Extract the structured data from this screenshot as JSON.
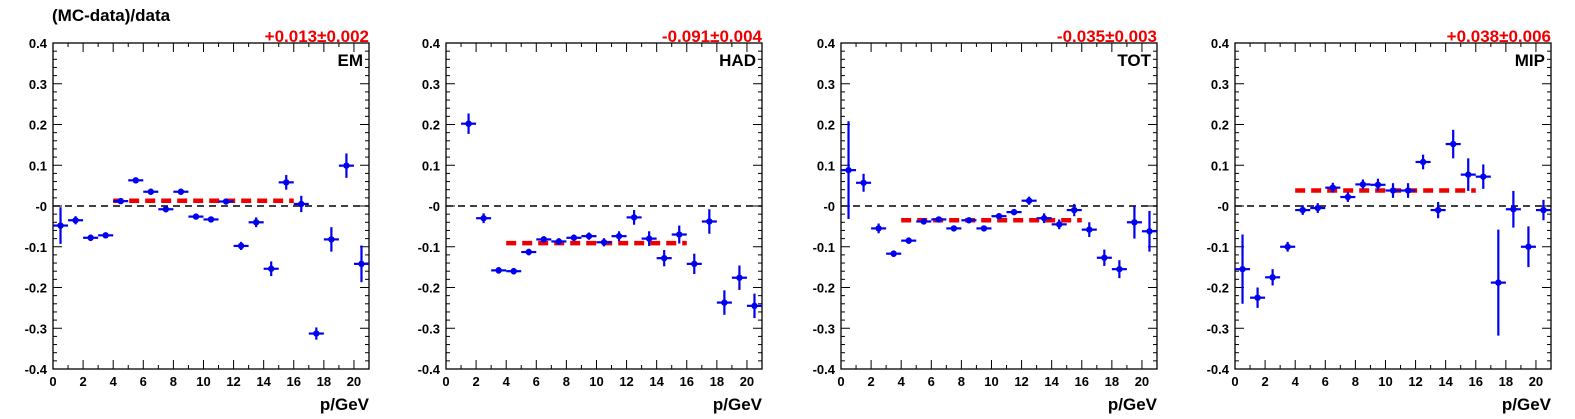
{
  "figure": {
    "ylabel": "(MC-data)/data"
  },
  "chart_data": [
    {
      "type": "scatter",
      "label": "EM",
      "fit_text": "+0.013±0.002",
      "fit_value": 0.013,
      "fit_range": [
        4,
        16
      ],
      "xlabel": "p/GeV",
      "ylabel": "(MC-data)/data",
      "xlim": [
        0,
        21
      ],
      "ylim": [
        -0.4,
        0.4
      ],
      "xticks": [
        0,
        2,
        4,
        6,
        8,
        10,
        12,
        14,
        16,
        18,
        20
      ],
      "yticks": [
        -0.4,
        -0.3,
        -0.2,
        -0.1,
        0,
        0.1,
        0.2,
        0.3,
        0.4
      ],
      "ytick_labels": [
        "-0.4",
        "-0.3",
        "-0.2",
        "-0.1",
        "-0",
        "0.1",
        "0.2",
        "0.3",
        "0.4"
      ],
      "reference_line": 0,
      "x": [
        0.5,
        1.5,
        2.5,
        3.5,
        4.5,
        5.5,
        6.5,
        7.5,
        8.5,
        9.5,
        10.5,
        11.5,
        12.5,
        13.5,
        14.5,
        15.5,
        16.5,
        17.5,
        18.5,
        19.5,
        20.5
      ],
      "y": [
        -0.048,
        -0.035,
        -0.078,
        -0.072,
        0.012,
        0.063,
        0.035,
        -0.008,
        0.035,
        -0.026,
        -0.033,
        0.011,
        -0.098,
        -0.04,
        -0.154,
        0.058,
        0.005,
        -0.313,
        -0.082,
        0.099,
        -0.142
      ],
      "yerr": [
        0.045,
        0.01,
        0.008,
        0.007,
        0.006,
        0.007,
        0.007,
        0.006,
        0.007,
        0.007,
        0.007,
        0.007,
        0.01,
        0.012,
        0.018,
        0.018,
        0.02,
        0.015,
        0.03,
        0.03,
        0.045
      ]
    },
    {
      "type": "scatter",
      "label": "HAD",
      "fit_text": "-0.091±0.004",
      "fit_value": -0.091,
      "fit_range": [
        4,
        16
      ],
      "xlabel": "p/GeV",
      "xlim": [
        0,
        21
      ],
      "ylim": [
        -0.4,
        0.4
      ],
      "xticks": [
        0,
        2,
        4,
        6,
        8,
        10,
        12,
        14,
        16,
        18,
        20
      ],
      "yticks": [
        -0.4,
        -0.3,
        -0.2,
        -0.1,
        0,
        0.1,
        0.2,
        0.3,
        0.4
      ],
      "ytick_labels": [
        "-0.4",
        "-0.3",
        "-0.2",
        "-0.1",
        "-0",
        "0.1",
        "0.2",
        "0.3",
        "0.4"
      ],
      "reference_line": 0,
      "x": [
        1.5,
        2.5,
        3.5,
        4.5,
        5.5,
        6.5,
        7.5,
        8.5,
        9.5,
        10.5,
        11.5,
        12.5,
        13.5,
        14.5,
        15.5,
        16.5,
        17.5,
        18.5,
        19.5,
        20.5
      ],
      "y": [
        0.202,
        -0.03,
        -0.158,
        -0.16,
        -0.113,
        -0.082,
        -0.087,
        -0.078,
        -0.074,
        -0.089,
        -0.074,
        -0.028,
        -0.08,
        -0.128,
        -0.07,
        -0.142,
        -0.038,
        -0.237,
        -0.176,
        -0.245
      ],
      "yerr": [
        0.025,
        0.012,
        0.008,
        0.008,
        0.008,
        0.008,
        0.008,
        0.008,
        0.009,
        0.01,
        0.012,
        0.018,
        0.018,
        0.02,
        0.022,
        0.025,
        0.03,
        0.03,
        0.03,
        0.03
      ]
    },
    {
      "type": "scatter",
      "label": "TOT",
      "fit_text": "-0.035±0.003",
      "fit_value": -0.035,
      "fit_range": [
        4,
        16
      ],
      "xlabel": "p/GeV",
      "xlim": [
        0,
        21
      ],
      "ylim": [
        -0.4,
        0.4
      ],
      "xticks": [
        0,
        2,
        4,
        6,
        8,
        10,
        12,
        14,
        16,
        18,
        20
      ],
      "yticks": [
        -0.4,
        -0.3,
        -0.2,
        -0.1,
        0,
        0.1,
        0.2,
        0.3,
        0.4
      ],
      "ytick_labels": [
        "-0.4",
        "-0.3",
        "-0.2",
        "-0.1",
        "-0",
        "0.1",
        "0.2",
        "0.3",
        "0.4"
      ],
      "reference_line": 0,
      "x": [
        0.5,
        1.5,
        2.5,
        3.5,
        4.5,
        5.5,
        6.5,
        7.5,
        8.5,
        9.5,
        10.5,
        11.5,
        12.5,
        13.5,
        14.5,
        15.5,
        16.5,
        17.5,
        18.5,
        19.5,
        20.5
      ],
      "y": [
        0.088,
        0.057,
        -0.055,
        -0.117,
        -0.085,
        -0.038,
        -0.033,
        -0.055,
        -0.035,
        -0.055,
        -0.025,
        -0.015,
        0.013,
        -0.03,
        -0.045,
        -0.01,
        -0.058,
        -0.127,
        -0.155,
        -0.04,
        -0.062
      ],
      "yerr": [
        0.12,
        0.022,
        0.012,
        0.008,
        0.008,
        0.007,
        0.007,
        0.007,
        0.007,
        0.007,
        0.007,
        0.007,
        0.01,
        0.012,
        0.012,
        0.015,
        0.018,
        0.02,
        0.022,
        0.04,
        0.05
      ]
    },
    {
      "type": "scatter",
      "label": "MIP",
      "fit_text": "+0.038±0.006",
      "fit_value": 0.038,
      "fit_range": [
        4,
        16
      ],
      "xlabel": "p/GeV",
      "xlim": [
        0,
        21
      ],
      "ylim": [
        -0.4,
        0.4
      ],
      "xticks": [
        0,
        2,
        4,
        6,
        8,
        10,
        12,
        14,
        16,
        18,
        20
      ],
      "yticks": [
        -0.4,
        -0.3,
        -0.2,
        -0.1,
        0,
        0.1,
        0.2,
        0.3,
        0.4
      ],
      "ytick_labels": [
        "-0.4",
        "-0.3",
        "-0.2",
        "-0.1",
        "-0",
        "0.1",
        "0.2",
        "0.3",
        "0.4"
      ],
      "reference_line": 0,
      "x": [
        0.5,
        1.5,
        2.5,
        3.5,
        4.5,
        5.5,
        6.5,
        7.5,
        8.5,
        9.5,
        10.5,
        11.5,
        12.5,
        13.5,
        14.5,
        15.5,
        16.5,
        17.5,
        18.5,
        19.5,
        20.5
      ],
      "y": [
        -0.155,
        -0.225,
        -0.175,
        -0.1,
        -0.01,
        -0.005,
        0.045,
        0.022,
        0.053,
        0.052,
        0.038,
        0.038,
        0.108,
        -0.01,
        0.152,
        0.077,
        0.072,
        -0.188,
        -0.008,
        -0.1,
        -0.01
      ],
      "yerr": [
        0.085,
        0.025,
        0.02,
        0.012,
        0.012,
        0.012,
        0.012,
        0.012,
        0.012,
        0.015,
        0.018,
        0.018,
        0.018,
        0.02,
        0.035,
        0.04,
        0.03,
        0.13,
        0.045,
        0.05,
        0.025
      ]
    }
  ]
}
